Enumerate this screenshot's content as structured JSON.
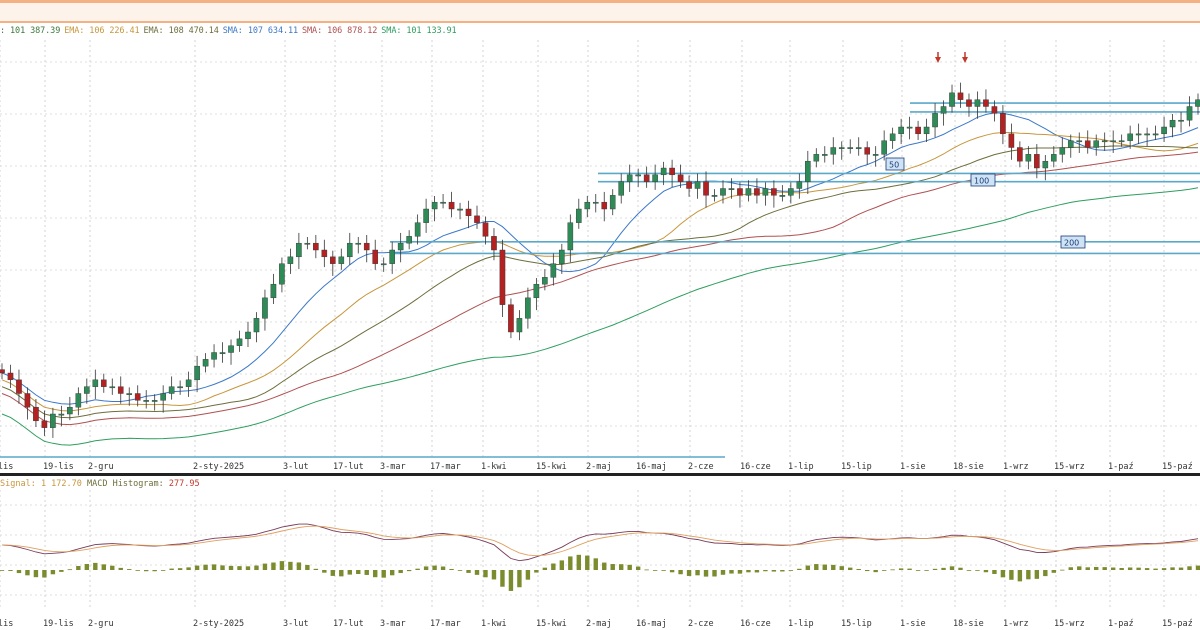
{
  "legend": {
    "items": [
      {
        "text": ": 101 387.39",
        "color": "#3c7a3c"
      },
      {
        "text": "EMA: 106 226.41",
        "color": "#c8963c"
      },
      {
        "text": "EMA: 108 470.14",
        "color": "#6e6e3c"
      },
      {
        "text": "SMA: 107 634.11",
        "color": "#3c78c8"
      },
      {
        "text": "SMA: 106 878.12",
        "color": "#b05050"
      },
      {
        "text": "SMA: 101 133.91",
        "color": "#2e9e5e"
      }
    ]
  },
  "macd_legend": {
    "signal_label": "Signal: 1 172.70",
    "hist_label": "MACD Histogram:",
    "hist_value": "277.95",
    "signal_color": "#c8963c",
    "hist_label_color": "#6e6e3c",
    "hist_value_color": "#c0392b"
  },
  "level_tags": [
    "50",
    "100",
    "200"
  ],
  "colors": {
    "up": "#2e8b57",
    "down": "#b22222",
    "resistance": "#5aa9c9",
    "macd": "#7a3b5a",
    "signal": "#e0a060",
    "hist": "#7a8c2e"
  },
  "chart_data": {
    "type": "candlestick",
    "x_ticks": [
      "lis",
      "19-lis",
      "2-gru",
      "2-sty-2025",
      "3-lut",
      "17-lut",
      "3-mar",
      "17-mar",
      "1-kwi",
      "15-kwi",
      "2-maj",
      "16-maj",
      "2-cze",
      "16-cze",
      "1-lip",
      "15-lip",
      "1-sie",
      "18-sie",
      "1-wrz",
      "15-wrz",
      "1-paź",
      "15-paź"
    ],
    "close": [
      102,
      101,
      99,
      97,
      95,
      94,
      96,
      96,
      97,
      99,
      100,
      101,
      100,
      100,
      99,
      99,
      98,
      98,
      98,
      99,
      100,
      100,
      101,
      103,
      104,
      105,
      105,
      106,
      107,
      108,
      110,
      113,
      115,
      118,
      119,
      121,
      121,
      120,
      119,
      118,
      119,
      121,
      121,
      120,
      118,
      118,
      120,
      121,
      122,
      124,
      126,
      127,
      127,
      126,
      126,
      125,
      124,
      122,
      120,
      112,
      108,
      110,
      113,
      115,
      116,
      118,
      120,
      124,
      126,
      127,
      127,
      126,
      128,
      130,
      131,
      131,
      130,
      131,
      132,
      131,
      130,
      129,
      130,
      128,
      128,
      129,
      129,
      128,
      129,
      128,
      129,
      128,
      128,
      129,
      130,
      133,
      134,
      134,
      135,
      135,
      135,
      135,
      134,
      134,
      136,
      137,
      138,
      138,
      137,
      138,
      140,
      141,
      143,
      142,
      141,
      142,
      141,
      140,
      137,
      135,
      133,
      134,
      132,
      133,
      134,
      135,
      136,
      136,
      135,
      136,
      136,
      136,
      136,
      137,
      137,
      137,
      137,
      138,
      139,
      139,
      141,
      142
    ],
    "series": [
      {
        "name": "SMA 50",
        "color": "#3c78c8"
      },
      {
        "name": "SMA 100",
        "color": "#b05050"
      },
      {
        "name": "SMA 200",
        "color": "#2e9e5e"
      },
      {
        "name": "EMA",
        "color": "#c8963c"
      },
      {
        "name": "EMA",
        "color": "#6e6e3c"
      }
    ],
    "resistance_levels": [
      141.5,
      140.2,
      131.2,
      130.0,
      121.2,
      119.5
    ],
    "macd_indicators": [
      "MACD",
      "Signal",
      "Histogram"
    ]
  }
}
